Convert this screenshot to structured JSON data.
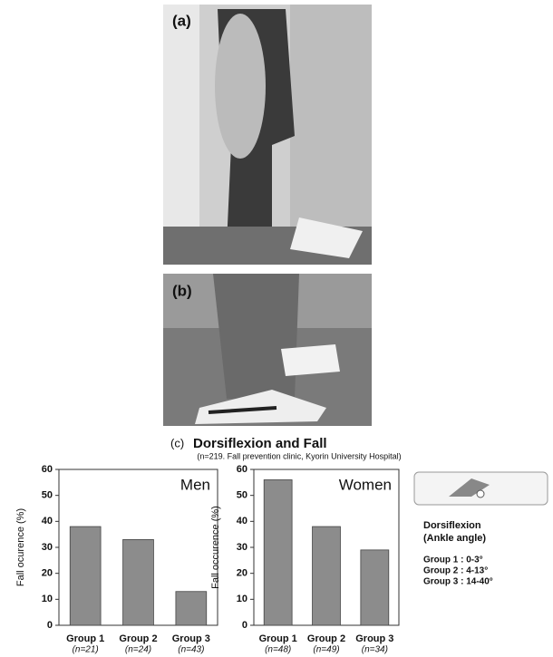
{
  "panels": {
    "a": "(a)",
    "b": "(b)",
    "c": "(c)"
  },
  "figure": {
    "title": "Dorsiflexion and Fall",
    "subtitle": "(n=219. Fall prevention clinic, Kyorin University Hospital)"
  },
  "legend_box": {
    "heading": "Dorsiflexion",
    "subheading": "(Ankle angle)",
    "groups": [
      "Group 1 : 0-3°",
      "Group 2 : 4-13°",
      "Group 3 : 14-40°"
    ]
  },
  "chart_data": [
    {
      "type": "bar",
      "title": "Men",
      "y_label": "Fall ocurence (%)",
      "categories": [
        "Group 1",
        "Group 2",
        "Group 3"
      ],
      "sample_sizes": [
        "(n=21)",
        "(n=24)",
        "(n=43)"
      ],
      "values": [
        38,
        33,
        13
      ],
      "color": "#8c8c8c",
      "ylim": [
        0,
        60
      ],
      "yticks": [
        0,
        10,
        20,
        30,
        40,
        50,
        60
      ]
    },
    {
      "type": "bar",
      "title": "Women",
      "y_label": "Fall occurence (%)",
      "categories": [
        "Group 1",
        "Group 2",
        "Group 3"
      ],
      "sample_sizes": [
        "(n=48)",
        "(n=49)",
        "(n=34)"
      ],
      "values": [
        56,
        38,
        29
      ],
      "color": "#8c8c8c",
      "ylim": [
        0,
        60
      ],
      "yticks": [
        0,
        10,
        20,
        30,
        40,
        50,
        60
      ]
    }
  ]
}
